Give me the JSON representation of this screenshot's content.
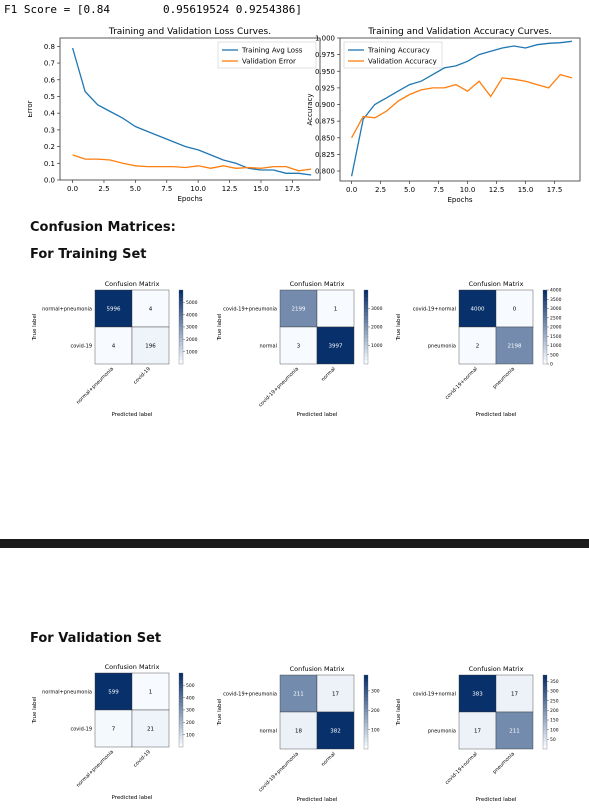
{
  "f1_line": "F1 Score = [0.84        0.95619524 0.9254386]",
  "headings": {
    "confusion": "Confusion Matrices:",
    "training_set": "For Training Set",
    "validation_set": "For Validation Set"
  },
  "chart_data": [
    {
      "type": "line",
      "title": "Training and Validation Loss Curves.",
      "xlabel": "Epochs",
      "ylabel": "Error",
      "xlim": [
        -1,
        19.7
      ],
      "ylim": [
        0,
        0.85
      ],
      "xticks": [
        "0.0",
        "2.5",
        "5.0",
        "7.5",
        "10.0",
        "12.5",
        "15.0",
        "17.5"
      ],
      "xtick_values": [
        0,
        2.5,
        5,
        7.5,
        10,
        12.5,
        15,
        17.5
      ],
      "yticks": [
        "0.0",
        "0.1",
        "0.2",
        "0.3",
        "0.4",
        "0.5",
        "0.6",
        "0.7",
        "0.8"
      ],
      "ytick_values": [
        0,
        0.1,
        0.2,
        0.3,
        0.4,
        0.5,
        0.6,
        0.7,
        0.8
      ],
      "legend_position": "top-right",
      "series": [
        {
          "name": "Training Avg Loss",
          "color": "#1f77b4",
          "x": [
            0,
            1,
            2,
            3,
            4,
            5,
            6,
            7,
            8,
            9,
            10,
            11,
            12,
            13,
            14,
            15,
            16,
            17,
            18,
            19
          ],
          "y": [
            0.79,
            0.53,
            0.45,
            0.41,
            0.37,
            0.32,
            0.29,
            0.26,
            0.23,
            0.2,
            0.18,
            0.15,
            0.12,
            0.1,
            0.07,
            0.06,
            0.06,
            0.04,
            0.04,
            0.03
          ]
        },
        {
          "name": "Validation Error",
          "color": "#ff7f0e",
          "x": [
            0,
            1,
            2,
            3,
            4,
            5,
            6,
            7,
            8,
            9,
            10,
            11,
            12,
            13,
            14,
            15,
            16,
            17,
            18,
            19
          ],
          "y": [
            0.15,
            0.125,
            0.125,
            0.12,
            0.1,
            0.085,
            0.08,
            0.08,
            0.08,
            0.075,
            0.085,
            0.07,
            0.085,
            0.07,
            0.075,
            0.07,
            0.08,
            0.08,
            0.055,
            0.065
          ]
        }
      ]
    },
    {
      "type": "line",
      "title": "Training and Validation Accuracy Curves.",
      "xlabel": "Epochs",
      "ylabel": "Accuracy",
      "xlim": [
        -1,
        19.7
      ],
      "ylim": [
        0.785,
        1.0
      ],
      "xticks": [
        "0.0",
        "2.5",
        "5.0",
        "7.5",
        "10.0",
        "12.5",
        "15.0",
        "17.5"
      ],
      "xtick_values": [
        0,
        2.5,
        5,
        7.5,
        10,
        12.5,
        15,
        17.5
      ],
      "yticks": [
        "0.800",
        "0.825",
        "0.850",
        "0.875",
        "0.900",
        "0.925",
        "0.950",
        "0.975",
        "1.000"
      ],
      "ytick_values": [
        0.8,
        0.825,
        0.85,
        0.875,
        0.9,
        0.925,
        0.95,
        0.975,
        1.0
      ],
      "legend_position": "top-left",
      "series": [
        {
          "name": "Training Accuracy",
          "color": "#1f77b4",
          "x": [
            0,
            1,
            2,
            3,
            4,
            5,
            6,
            7,
            8,
            9,
            10,
            11,
            12,
            13,
            14,
            15,
            16,
            17,
            18,
            19
          ],
          "y": [
            0.792,
            0.878,
            0.9,
            0.91,
            0.92,
            0.93,
            0.935,
            0.945,
            0.955,
            0.958,
            0.965,
            0.975,
            0.98,
            0.985,
            0.988,
            0.985,
            0.99,
            0.992,
            0.993,
            0.995
          ]
        },
        {
          "name": "Validation Accuracy",
          "color": "#ff7f0e",
          "x": [
            0,
            1,
            2,
            3,
            4,
            5,
            6,
            7,
            8,
            9,
            10,
            11,
            12,
            13,
            14,
            15,
            16,
            17,
            18,
            19
          ],
          "y": [
            0.85,
            0.882,
            0.88,
            0.89,
            0.905,
            0.915,
            0.922,
            0.925,
            0.925,
            0.93,
            0.92,
            0.935,
            0.912,
            0.94,
            0.938,
            0.935,
            0.93,
            0.925,
            0.945,
            0.94
          ]
        }
      ]
    },
    {
      "type": "heatmap",
      "set": "Training",
      "title": "Confusion Matrix",
      "row_labels": [
        "normal+pneumonia",
        "covid-19"
      ],
      "col_labels": [
        "normal+pneumonia",
        "covid-19"
      ],
      "values": [
        [
          5996,
          4
        ],
        [
          4,
          196
        ]
      ],
      "colorbar_ticks": [
        1000,
        2000,
        3000,
        4000,
        5000
      ],
      "vmin": 0,
      "vmax": 5996,
      "xlabel": "Predicted label",
      "ylabel": "True label"
    },
    {
      "type": "heatmap",
      "set": "Training",
      "title": "Confusion Matrix",
      "row_labels": [
        "covid-19+pneumonia",
        "normal"
      ],
      "col_labels": [
        "covid-19+pneumonia",
        "normal"
      ],
      "values": [
        [
          2199,
          1
        ],
        [
          3,
          3997
        ]
      ],
      "colorbar_ticks": [
        1000,
        2000,
        3000
      ],
      "vmin": 0,
      "vmax": 3997,
      "xlabel": "Predicted label",
      "ylabel": "True label"
    },
    {
      "type": "heatmap",
      "set": "Training",
      "title": "Confusion Matrix",
      "row_labels": [
        "covid-19+normal",
        "pneumonia"
      ],
      "col_labels": [
        "covid-19+normal",
        "pneumonia"
      ],
      "values": [
        [
          4000,
          0
        ],
        [
          2,
          2198
        ]
      ],
      "colorbar_ticks": [
        0,
        500,
        1000,
        1500,
        2000,
        2500,
        3000,
        3500,
        4000
      ],
      "vmin": 0,
      "vmax": 4000,
      "xlabel": "Predicted label",
      "ylabel": "True label"
    },
    {
      "type": "heatmap",
      "set": "Validation",
      "title": "Confusion Matrix",
      "row_labels": [
        "normal+pneumonia",
        "covid-19"
      ],
      "col_labels": [
        "normal+pneumonia",
        "covid-19"
      ],
      "values": [
        [
          599,
          1
        ],
        [
          7,
          21
        ]
      ],
      "colorbar_ticks": [
        100,
        200,
        300,
        400,
        500
      ],
      "vmin": 0,
      "vmax": 599,
      "xlabel": "Predicted label",
      "ylabel": "True label"
    },
    {
      "type": "heatmap",
      "set": "Validation",
      "title": "Confusion Matrix",
      "row_labels": [
        "covid-19+pneumonia",
        "normal"
      ],
      "col_labels": [
        "covid-19+pneumonia",
        "normal"
      ],
      "values": [
        [
          211,
          17
        ],
        [
          18,
          382
        ]
      ],
      "colorbar_ticks": [
        100,
        200,
        300
      ],
      "vmin": 0,
      "vmax": 382,
      "xlabel": "Predicted label",
      "ylabel": "True label"
    },
    {
      "type": "heatmap",
      "set": "Validation",
      "title": "Confusion Matrix",
      "row_labels": [
        "covid-19+normal",
        "pneumonia"
      ],
      "col_labels": [
        "covid-19+normal",
        "pneumonia"
      ],
      "values": [
        [
          383,
          17
        ],
        [
          17,
          211
        ]
      ],
      "colorbar_ticks": [
        50,
        100,
        150,
        200,
        250,
        300,
        350
      ],
      "vmin": 0,
      "vmax": 383,
      "xlabel": "Predicted label",
      "ylabel": "True label"
    }
  ]
}
